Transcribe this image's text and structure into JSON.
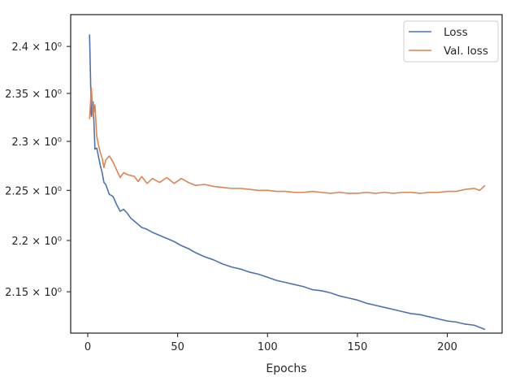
{
  "chart_data": {
    "type": "line",
    "title": "",
    "xlabel": "Epochs",
    "ylabel": "",
    "yscale": "log",
    "xlim": [
      -9.5,
      230.5
    ],
    "ylim": [
      2.1105,
      2.4345
    ],
    "grid": false,
    "legend_position": "top-right",
    "x_ticks": [
      {
        "value": 0,
        "label": "0"
      },
      {
        "value": 50,
        "label": "50"
      },
      {
        "value": 100,
        "label": "100"
      },
      {
        "value": 150,
        "label": "150"
      },
      {
        "value": 200,
        "label": "200"
      }
    ],
    "y_ticks": [
      {
        "value": 2.15,
        "label": "2.15 × 10⁰"
      },
      {
        "value": 2.2,
        "label": "2.2 × 10⁰"
      },
      {
        "value": 2.25,
        "label": "2.25 × 10⁰"
      },
      {
        "value": 2.3,
        "label": "2.3 × 10⁰"
      },
      {
        "value": 2.35,
        "label": "2.35 × 10⁰"
      },
      {
        "value": 2.4,
        "label": "2.4 × 10⁰"
      }
    ],
    "series": [
      {
        "name": "Loss",
        "color": "#4c72b0",
        "points": [
          [
            1,
            2.413
          ],
          [
            2,
            2.326
          ],
          [
            3,
            2.341
          ],
          [
            4,
            2.292
          ],
          [
            5,
            2.293
          ],
          [
            6,
            2.284
          ],
          [
            7,
            2.275
          ],
          [
            8,
            2.268
          ],
          [
            9,
            2.258
          ],
          [
            10,
            2.256
          ],
          [
            12,
            2.246
          ],
          [
            14,
            2.244
          ],
          [
            16,
            2.236
          ],
          [
            18,
            2.229
          ],
          [
            20,
            2.231
          ],
          [
            22,
            2.227
          ],
          [
            24,
            2.222
          ],
          [
            26,
            2.219
          ],
          [
            28,
            2.216
          ],
          [
            30,
            2.213
          ],
          [
            33,
            2.211
          ],
          [
            36,
            2.208
          ],
          [
            40,
            2.205
          ],
          [
            44,
            2.202
          ],
          [
            48,
            2.199
          ],
          [
            52,
            2.195
          ],
          [
            56,
            2.192
          ],
          [
            60,
            2.188
          ],
          [
            65,
            2.184
          ],
          [
            70,
            2.181
          ],
          [
            75,
            2.177
          ],
          [
            80,
            2.174
          ],
          [
            85,
            2.172
          ],
          [
            90,
            2.169
          ],
          [
            95,
            2.167
          ],
          [
            100,
            2.164
          ],
          [
            105,
            2.161
          ],
          [
            110,
            2.159
          ],
          [
            115,
            2.157
          ],
          [
            120,
            2.155
          ],
          [
            125,
            2.152
          ],
          [
            130,
            2.151
          ],
          [
            135,
            2.149
          ],
          [
            140,
            2.146
          ],
          [
            145,
            2.144
          ],
          [
            150,
            2.142
          ],
          [
            155,
            2.139
          ],
          [
            160,
            2.137
          ],
          [
            165,
            2.135
          ],
          [
            170,
            2.133
          ],
          [
            175,
            2.131
          ],
          [
            180,
            2.129
          ],
          [
            185,
            2.128
          ],
          [
            190,
            2.126
          ],
          [
            195,
            2.124
          ],
          [
            200,
            2.122
          ],
          [
            205,
            2.121
          ],
          [
            210,
            2.119
          ],
          [
            215,
            2.118
          ],
          [
            218,
            2.116
          ],
          [
            221,
            2.114
          ]
        ]
      },
      {
        "name": "Val. loss",
        "color": "#dd8452",
        "points": [
          [
            1,
            2.323
          ],
          [
            2,
            2.356
          ],
          [
            3,
            2.325
          ],
          [
            4,
            2.338
          ],
          [
            5,
            2.305
          ],
          [
            6,
            2.296
          ],
          [
            7,
            2.288
          ],
          [
            8,
            2.283
          ],
          [
            9,
            2.273
          ],
          [
            10,
            2.281
          ],
          [
            12,
            2.285
          ],
          [
            14,
            2.279
          ],
          [
            16,
            2.271
          ],
          [
            18,
            2.263
          ],
          [
            20,
            2.268
          ],
          [
            22,
            2.266
          ],
          [
            24,
            2.265
          ],
          [
            26,
            2.264
          ],
          [
            28,
            2.259
          ],
          [
            30,
            2.264
          ],
          [
            33,
            2.257
          ],
          [
            36,
            2.262
          ],
          [
            40,
            2.258
          ],
          [
            44,
            2.263
          ],
          [
            48,
            2.257
          ],
          [
            52,
            2.262
          ],
          [
            56,
            2.258
          ],
          [
            60,
            2.255
          ],
          [
            65,
            2.256
          ],
          [
            70,
            2.254
          ],
          [
            75,
            2.253
          ],
          [
            80,
            2.252
          ],
          [
            85,
            2.252
          ],
          [
            90,
            2.251
          ],
          [
            95,
            2.25
          ],
          [
            100,
            2.25
          ],
          [
            105,
            2.249
          ],
          [
            110,
            2.249
          ],
          [
            115,
            2.248
          ],
          [
            120,
            2.248
          ],
          [
            125,
            2.249
          ],
          [
            130,
            2.248
          ],
          [
            135,
            2.247
          ],
          [
            140,
            2.248
          ],
          [
            145,
            2.247
          ],
          [
            150,
            2.247
          ],
          [
            155,
            2.248
          ],
          [
            160,
            2.247
          ],
          [
            165,
            2.248
          ],
          [
            170,
            2.247
          ],
          [
            175,
            2.248
          ],
          [
            180,
            2.248
          ],
          [
            185,
            2.247
          ],
          [
            190,
            2.248
          ],
          [
            195,
            2.248
          ],
          [
            200,
            2.249
          ],
          [
            205,
            2.249
          ],
          [
            210,
            2.251
          ],
          [
            215,
            2.252
          ],
          [
            218,
            2.25
          ],
          [
            221,
            2.255
          ]
        ]
      }
    ]
  }
}
